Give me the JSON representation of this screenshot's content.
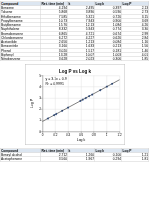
{
  "table": {
    "header": [
      "Compound",
      "Ret. time (min)",
      "k",
      "Log k",
      "Log P"
    ],
    "rows": [
      [
        "Benzene",
        "4.194",
        "2.495",
        "0.397",
        "2.13"
      ],
      [
        "Toluene",
        "5.868",
        "3.890",
        "0.590",
        "2.73"
      ],
      [
        "Ethylbenzene",
        "7.585",
        "5.321",
        "0.726",
        "3.15"
      ],
      [
        "Propylbenzene",
        "10.73",
        "7.943",
        "0.900",
        "3.69"
      ],
      [
        "Butylbenzene",
        "15.76",
        "12.13",
        "1.084",
        "4.26"
      ],
      [
        "Naphthalene",
        "8.332",
        "5.943",
        "0.774",
        "3.30"
      ],
      [
        "Bromobenzene",
        "6.865",
        "4.721",
        "0.674",
        "2.99"
      ],
      [
        "Chlorobenzene",
        "6.272",
        "4.227",
        "0.626",
        "2.84"
      ],
      [
        "Acetanilide",
        "2.656",
        "1.213",
        "0.084",
        "1.16"
      ],
      [
        "Benzonitrile",
        "3.160",
        "1.633",
        "0.213",
        "1.56"
      ],
      [
        "Phenol",
        "3.020",
        "1.517",
        "0.181",
        "1.46"
      ],
      [
        "Biphenyl",
        "13.28",
        "10.07",
        "1.003",
        "4.01"
      ],
      [
        "Nitrobenzene",
        "3.628",
        "2.023",
        "0.306",
        "1.85"
      ]
    ]
  },
  "chart_data": {
    "type": "scatter",
    "title": "Log P vs Log k",
    "x_label": "Log k",
    "y_label": "Log P",
    "x": [
      0.397,
      0.59,
      0.726,
      0.9,
      1.084,
      0.774,
      0.674,
      0.626,
      0.084,
      0.213,
      0.181,
      1.003,
      0.306
    ],
    "series": [
      {
        "color": "#2f5597",
        "marker": "circle",
        "values": [
          2.13,
          2.73,
          3.15,
          3.69,
          4.26,
          3.3,
          2.99,
          2.84,
          1.16,
          1.56,
          1.46,
          4.01,
          1.85
        ]
      }
    ],
    "trendline": {
      "x": [
        0,
        1.2
      ],
      "y": [
        0.9,
        4.62
      ],
      "color": "#000000",
      "line_style": "solid"
    },
    "annotations": [
      "y = 3.1x + 0.9",
      "R² = 0.9991"
    ],
    "xlim": [
      0,
      1.2
    ],
    "xticks": [
      0,
      0.2,
      0.4,
      0.6,
      0.8,
      1,
      1.2
    ],
    "ylim": [
      0,
      5
    ],
    "yticks": [
      0,
      1,
      2,
      3,
      4,
      5
    ],
    "grid": true
  },
  "table2": {
    "header": [
      "Compound",
      "Ret. time (min)",
      "k",
      "Log k",
      "Log P"
    ],
    "rows": [
      [
        "Benzyl alcohol",
        "2.712",
        "1.260",
        "0.100",
        "1.21"
      ],
      [
        "Acetophenone",
        "3.560",
        "1.967",
        "0.294",
        "1.81"
      ]
    ]
  }
}
